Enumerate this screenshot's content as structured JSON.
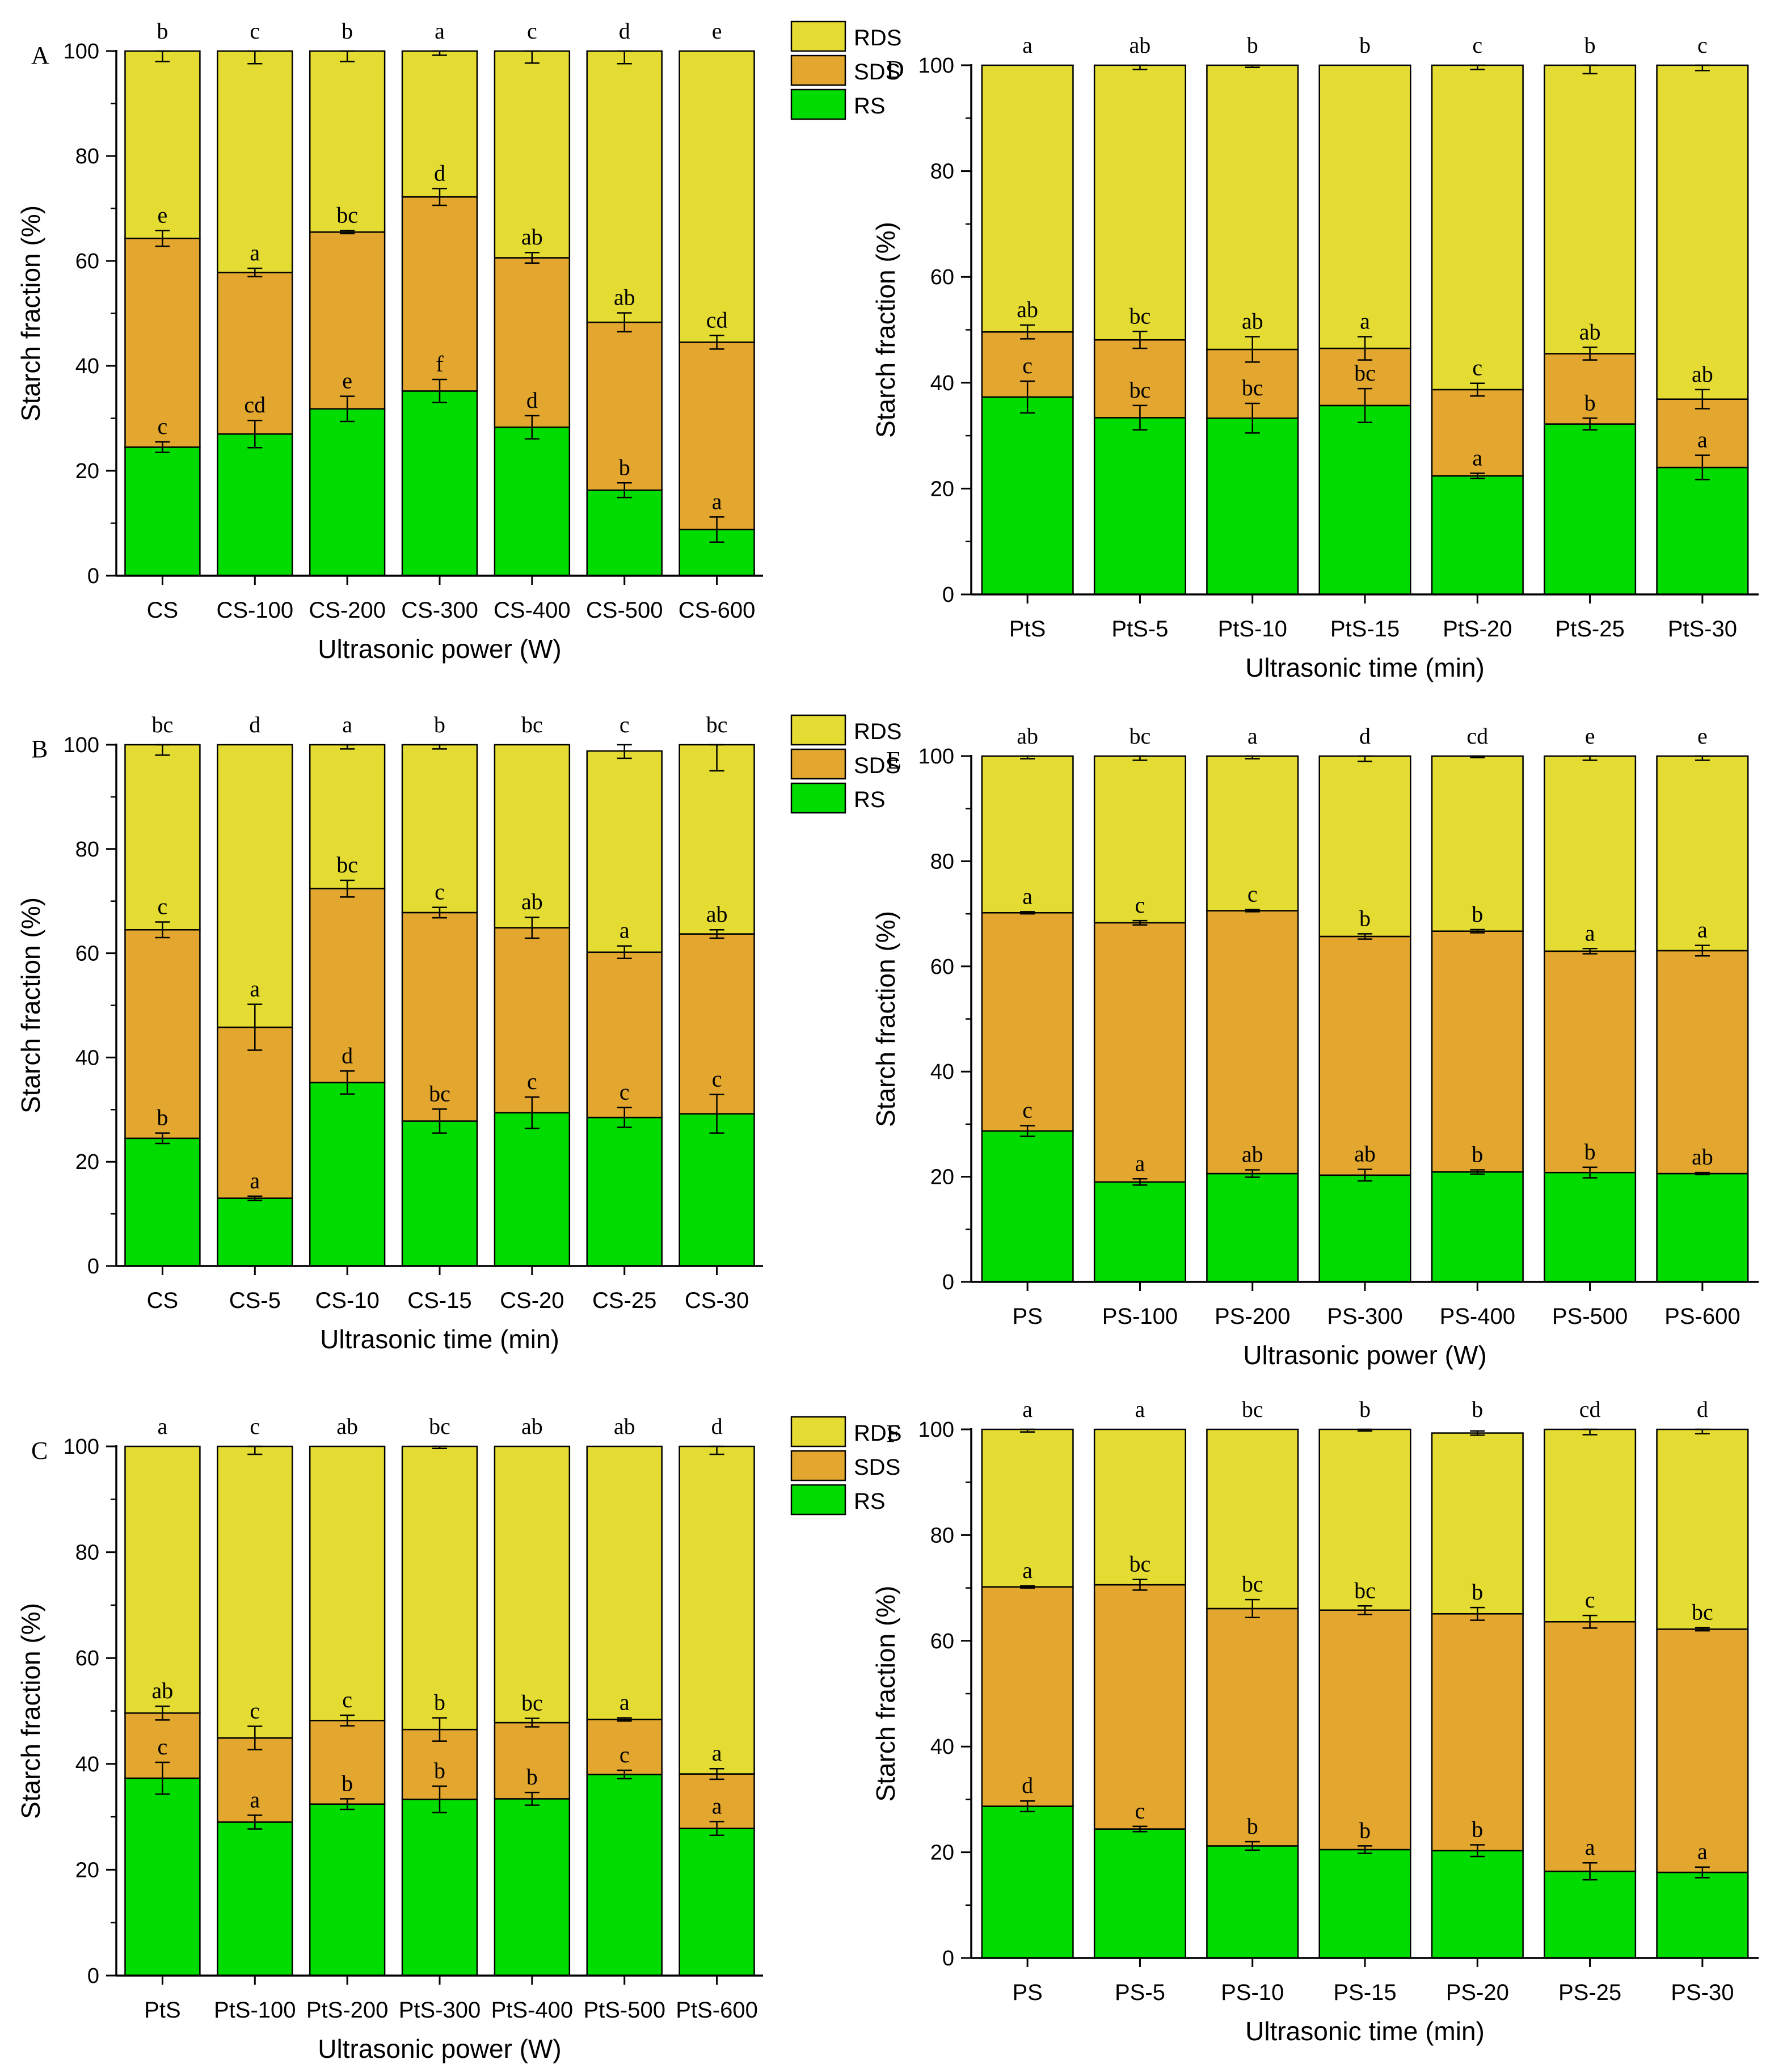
{
  "colors": {
    "rds": "#e5dc33",
    "sds": "#e3a72f",
    "rs": "#00dc00",
    "axis": "#000000",
    "background": "#ffffff"
  },
  "chart_data": [
    {
      "type": "bar",
      "stacked": true,
      "panel": "A",
      "categories": [
        "CS",
        "CS-100",
        "CS-200",
        "CS-300",
        "CS-400",
        "CS-500",
        "CS-600"
      ],
      "series": [
        {
          "name": "RS",
          "values": [
            24.5,
            27.0,
            31.8,
            35.2,
            28.3,
            16.3,
            8.8
          ],
          "errors": [
            1.0,
            2.6,
            2.4,
            2.2,
            2.2,
            1.4,
            2.4
          ],
          "letters": [
            "c",
            "cd",
            "e",
            "f",
            "d",
            "b",
            "a"
          ]
        },
        {
          "name": "SDS",
          "values": [
            39.8,
            30.8,
            33.7,
            37.0,
            32.3,
            32.0,
            35.7
          ],
          "errors": [
            1.5,
            0.8,
            0.3,
            1.6,
            1.0,
            1.8,
            1.3
          ],
          "letters": [
            "e",
            "a",
            "bc",
            "d",
            "ab",
            "ab",
            "cd"
          ]
        },
        {
          "name": "RDS",
          "values": [
            35.7,
            42.2,
            34.5,
            27.8,
            39.4,
            51.7,
            55.5
          ],
          "errors": [
            2.0,
            2.4,
            2.0,
            0.8,
            2.3,
            2.4,
            0
          ],
          "letters": [
            "b",
            "c",
            "b",
            "a",
            "c",
            "d",
            "e"
          ]
        }
      ],
      "title": "",
      "xlabel": "Ultrasonic power (W)",
      "ylabel": "Starch fraction (%)",
      "ylim": [
        0,
        100
      ],
      "yticks": [
        "0",
        "20",
        "40",
        "60",
        "80",
        "100"
      ],
      "legend": "top-right",
      "grid": false
    },
    {
      "type": "bar",
      "stacked": true,
      "panel": "B",
      "categories": [
        "CS",
        "CS-5",
        "CS-10",
        "CS-15",
        "CS-20",
        "CS-25",
        "CS-30"
      ],
      "series": [
        {
          "name": "RS",
          "values": [
            24.5,
            13.0,
            35.2,
            27.8,
            29.4,
            28.5,
            29.2
          ],
          "errors": [
            1.0,
            0.4,
            2.2,
            2.3,
            3.0,
            1.9,
            3.7
          ],
          "letters": [
            "b",
            "a",
            "d",
            "bc",
            "c",
            "c",
            "c"
          ]
        },
        {
          "name": "SDS",
          "values": [
            40.0,
            32.8,
            37.2,
            40.0,
            35.5,
            31.7,
            34.5
          ],
          "errors": [
            1.5,
            4.4,
            1.6,
            1.0,
            2.0,
            1.2,
            0.8
          ],
          "letters": [
            "c",
            "a",
            "bc",
            "c",
            "ab",
            "a",
            "ab"
          ]
        },
        {
          "name": "RDS",
          "values": [
            35.5,
            54.2,
            27.6,
            32.2,
            35.1,
            38.6,
            36.3
          ],
          "errors": [
            2.0,
            0,
            0.8,
            0.8,
            0,
            1.4,
            5.0
          ],
          "letters": [
            "bc",
            "d",
            "a",
            "b",
            "bc",
            "c",
            "bc"
          ]
        }
      ],
      "title": "",
      "xlabel": "Ultrasonic time (min)",
      "ylabel": "Starch fraction (%)",
      "ylim": [
        0,
        100
      ],
      "yticks": [
        "0",
        "20",
        "40",
        "60",
        "80",
        "100"
      ],
      "legend": "top-right",
      "grid": false
    },
    {
      "type": "bar",
      "stacked": true,
      "panel": "C",
      "categories": [
        "PtS",
        "PtS-100",
        "PtS-200",
        "PtS-300",
        "PtS-400",
        "PtS-500",
        "PtS-600"
      ],
      "series": [
        {
          "name": "RS",
          "values": [
            37.3,
            29.0,
            32.4,
            33.3,
            33.4,
            38.0,
            27.8
          ],
          "errors": [
            3.0,
            1.3,
            1.0,
            2.5,
            1.2,
            0.8,
            1.3
          ],
          "letters": [
            "c",
            "a",
            "b",
            "b",
            "b",
            "c",
            "a"
          ]
        },
        {
          "name": "SDS",
          "values": [
            12.3,
            15.9,
            15.8,
            13.2,
            14.4,
            10.4,
            10.3
          ],
          "errors": [
            1.3,
            2.2,
            1.0,
            2.2,
            0.8,
            0.3,
            1.0
          ],
          "letters": [
            "ab",
            "c",
            "c",
            "b",
            "bc",
            "a",
            "a"
          ]
        },
        {
          "name": "RDS",
          "values": [
            50.4,
            55.1,
            51.8,
            53.5,
            52.2,
            51.6,
            61.9
          ],
          "errors": [
            0,
            1.5,
            0,
            0.4,
            0,
            0,
            1.5
          ],
          "letters": [
            "a",
            "c",
            "ab",
            "bc",
            "ab",
            "ab",
            "d"
          ]
        }
      ],
      "title": "",
      "xlabel": "Ultrasonic power (W)",
      "ylabel": "Starch fraction (%)",
      "ylim": [
        0,
        100
      ],
      "yticks": [
        "0",
        "20",
        "40",
        "60",
        "80",
        "100"
      ],
      "legend": "top-right",
      "grid": false
    },
    {
      "type": "bar",
      "stacked": true,
      "panel": "D",
      "categories": [
        "PtS",
        "PtS-5",
        "PtS-10",
        "PtS-15",
        "PtS-20",
        "PtS-25",
        "PtS-30"
      ],
      "series": [
        {
          "name": "RS",
          "values": [
            37.3,
            33.4,
            33.3,
            35.7,
            22.4,
            32.2,
            24.0
          ],
          "errors": [
            3.0,
            2.3,
            2.8,
            3.2,
            0.5,
            1.1,
            2.3
          ],
          "letters": [
            "c",
            "bc",
            "bc",
            "bc",
            "a",
            "b",
            "a"
          ]
        },
        {
          "name": "SDS",
          "values": [
            12.3,
            14.7,
            13.0,
            10.8,
            16.3,
            13.3,
            12.9
          ],
          "errors": [
            1.3,
            1.6,
            2.4,
            2.2,
            1.2,
            1.2,
            1.8
          ],
          "letters": [
            "ab",
            "bc",
            "ab",
            "a",
            "c",
            "ab",
            "ab"
          ]
        },
        {
          "name": "RDS",
          "values": [
            50.4,
            51.9,
            53.7,
            53.5,
            61.3,
            54.5,
            63.1
          ],
          "errors": [
            0,
            0.8,
            0.4,
            0,
            0.8,
            1.6,
            1.0
          ],
          "letters": [
            "a",
            "ab",
            "b",
            "b",
            "c",
            "b",
            "c"
          ]
        }
      ],
      "title": "",
      "xlabel": "Ultrasonic time (min)",
      "ylabel": "Starch fraction (%)",
      "ylim": [
        0,
        100
      ],
      "yticks": [
        "0",
        "20",
        "40",
        "60",
        "80",
        "100"
      ],
      "legend": "top-right",
      "grid": false
    },
    {
      "type": "bar",
      "stacked": true,
      "panel": "E",
      "categories": [
        "PS",
        "PS-100",
        "PS-200",
        "PS-300",
        "PS-400",
        "PS-500",
        "PS-600"
      ],
      "series": [
        {
          "name": "RS",
          "values": [
            28.7,
            19.0,
            20.6,
            20.3,
            20.9,
            20.8,
            20.6
          ],
          "errors": [
            1.0,
            0.6,
            0.7,
            1.1,
            0.4,
            1.0,
            0.2
          ],
          "letters": [
            "c",
            "a",
            "ab",
            "ab",
            "b",
            "b",
            "ab"
          ]
        },
        {
          "name": "SDS",
          "values": [
            41.5,
            49.3,
            50.0,
            45.4,
            45.8,
            42.1,
            42.4
          ],
          "errors": [
            0.2,
            0.4,
            0.2,
            0.5,
            0.3,
            0.5,
            1.0
          ],
          "letters": [
            "a",
            "c",
            "c",
            "b",
            "b",
            "a",
            "a"
          ]
        },
        {
          "name": "RDS",
          "values": [
            29.8,
            31.7,
            29.4,
            34.3,
            33.3,
            37.1,
            37.0
          ],
          "errors": [
            0.5,
            0.8,
            0.5,
            1.0,
            0.3,
            0.8,
            0.8
          ],
          "letters": [
            "ab",
            "bc",
            "a",
            "d",
            "cd",
            "e",
            "e"
          ]
        }
      ],
      "title": "",
      "xlabel": "Ultrasonic power (W)",
      "ylabel": "Starch fraction (%)",
      "ylim": [
        0,
        100
      ],
      "yticks": [
        "0",
        "20",
        "40",
        "60",
        "80",
        "100"
      ],
      "legend": "top-right",
      "grid": false
    },
    {
      "type": "bar",
      "stacked": true,
      "panel": "F",
      "categories": [
        "PS",
        "PS-5",
        "PS-10",
        "PS-15",
        "PS-20",
        "PS-25",
        "PS-30"
      ],
      "series": [
        {
          "name": "RS",
          "values": [
            28.7,
            24.4,
            21.2,
            20.5,
            20.3,
            16.4,
            16.2
          ],
          "errors": [
            1.0,
            0.5,
            0.8,
            0.7,
            1.1,
            1.6,
            1.0
          ],
          "letters": [
            "d",
            "c",
            "b",
            "b",
            "b",
            "a",
            "a"
          ]
        },
        {
          "name": "SDS",
          "values": [
            41.5,
            46.2,
            44.9,
            45.3,
            44.8,
            47.2,
            46.0
          ],
          "errors": [
            0.2,
            1.0,
            1.7,
            0.8,
            1.2,
            1.2,
            0.3
          ],
          "letters": [
            "a",
            "bc",
            "bc",
            "bc",
            "b",
            "c",
            "bc"
          ]
        },
        {
          "name": "RDS",
          "values": [
            29.8,
            29.4,
            33.9,
            34.2,
            34.2,
            36.4,
            37.8
          ],
          "errors": [
            0.5,
            0,
            0,
            0.3,
            0.4,
            1.0,
            0.8
          ],
          "letters": [
            "a",
            "a",
            "bc",
            "b",
            "b",
            "cd",
            "d"
          ]
        }
      ],
      "title": "",
      "xlabel": "Ultrasonic time (min)",
      "ylabel": "Starch fraction (%)",
      "ylim": [
        0,
        100
      ],
      "yticks": [
        "0",
        "20",
        "40",
        "60",
        "80",
        "100"
      ],
      "legend": "top-right",
      "grid": false
    }
  ]
}
